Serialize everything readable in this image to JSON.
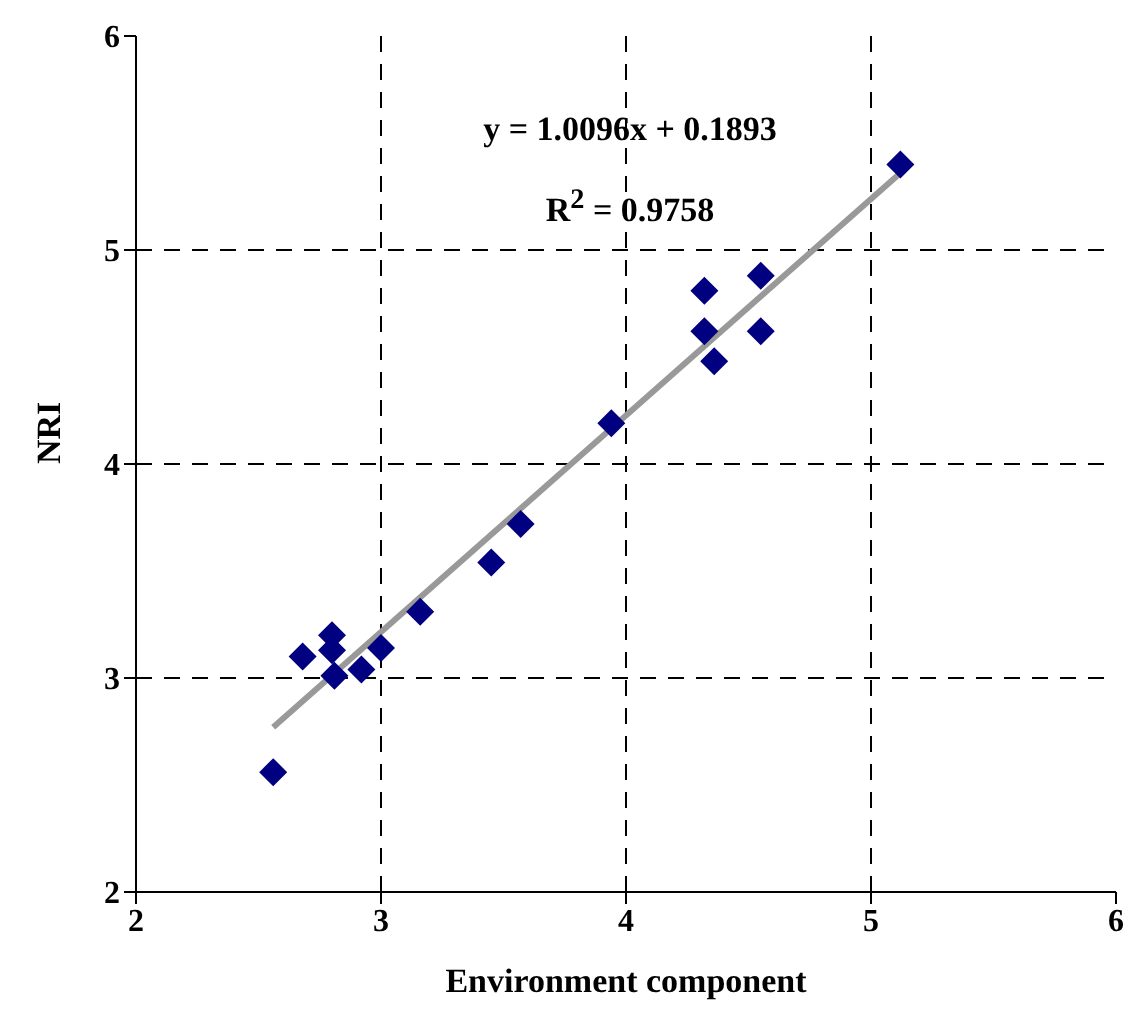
{
  "chart_data": {
    "type": "scatter",
    "xlabel": "Environment component",
    "ylabel": "NRI",
    "annotations": [
      "y = 1.0096x + 0.1893",
      "R$^{2}$ = 0.9758"
    ],
    "xlim": [
      2,
      6
    ],
    "ylim": [
      2,
      6
    ],
    "xticks": [
      2,
      3,
      4,
      5,
      6
    ],
    "yticks": [
      2,
      3,
      4,
      5,
      6
    ],
    "grid": true,
    "marker": "diamond",
    "series": [
      {
        "color": "#000080",
        "x": [
          2.56,
          2.68,
          2.8,
          2.8,
          2.81,
          2.92,
          3.0,
          3.16,
          3.45,
          3.57,
          3.94,
          4.32,
          4.32,
          4.36,
          4.55,
          4.55,
          5.12
        ],
        "values": [
          2.56,
          3.1,
          3.2,
          3.13,
          3.01,
          3.04,
          3.14,
          3.31,
          3.54,
          3.72,
          4.19,
          4.62,
          4.81,
          4.48,
          4.62,
          4.88,
          5.4
        ]
      },
      {
        "type": "line",
        "color": "#999999",
        "marker": "none",
        "line_style": "solid",
        "x": [
          2.56,
          5.12
        ],
        "values": [
          2.77,
          5.36
        ]
      }
    ]
  }
}
